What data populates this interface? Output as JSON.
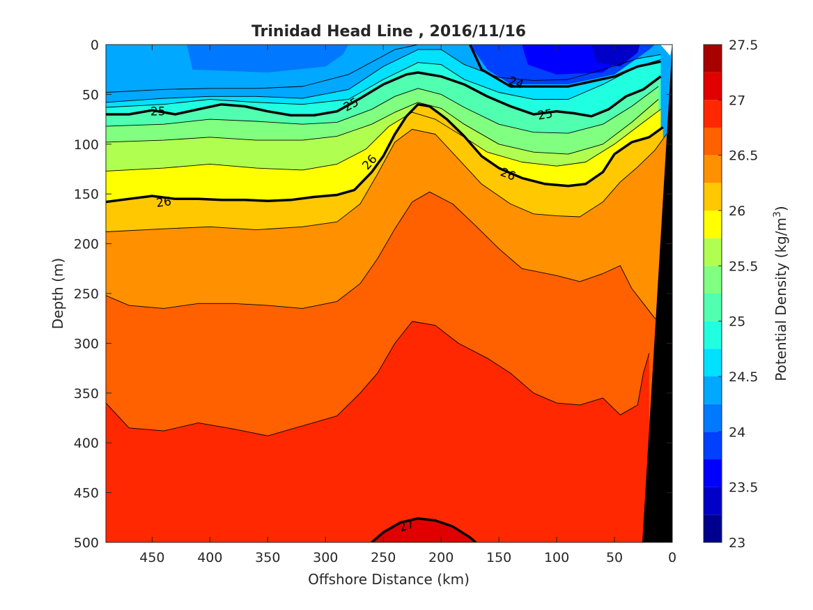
{
  "chart_data": {
    "type": "contour",
    "title": "Trinidad Head Line , 2016/11/16",
    "xlabel": "Offshore Distance (km)",
    "ylabel": "Depth (m)",
    "colorbar_label_main": "Potential Density (kg/m",
    "colorbar_label_sup": "3",
    "colorbar_label_tail": ")",
    "xlim": [
      490,
      0
    ],
    "ylim": [
      0,
      500
    ],
    "x_ticks": [
      450,
      400,
      350,
      300,
      250,
      200,
      150,
      100,
      50,
      0
    ],
    "y_ticks": [
      0,
      50,
      100,
      150,
      200,
      250,
      300,
      350,
      400,
      450,
      500
    ],
    "colorbar_levels": [
      23,
      23.25,
      23.5,
      23.75,
      24,
      24.25,
      24.5,
      24.75,
      25,
      25.25,
      25.5,
      25.75,
      26,
      26.25,
      26.5,
      26.75,
      27,
      27.25,
      27.5
    ],
    "colorbar_ticks": [
      23,
      23.5,
      24,
      24.5,
      25,
      25.5,
      26,
      26.5,
      27,
      27.5
    ],
    "colormap": [
      "#00008f",
      "#0000c8",
      "#0000ff",
      "#0040ff",
      "#0078ff",
      "#00a8ff",
      "#00e0ff",
      "#20ffe0",
      "#50ffb0",
      "#80ff80",
      "#b0ff50",
      "#ffff00",
      "#ffc800",
      "#ff9000",
      "#ff6000",
      "#ff2800",
      "#e00000",
      "#a80000"
    ],
    "isopycnals": [
      {
        "level": 24.25,
        "points": [
          [
            490,
            48
          ],
          [
            440,
            45
          ],
          [
            400,
            44
          ],
          [
            360,
            44
          ],
          [
            320,
            42
          ],
          [
            280,
            30
          ],
          [
            240,
            5
          ],
          [
            220,
            0
          ]
        ]
      },
      {
        "level": 24.5,
        "points": [
          [
            490,
            58
          ],
          [
            440,
            54
          ],
          [
            400,
            52
          ],
          [
            360,
            52
          ],
          [
            320,
            54
          ],
          [
            280,
            45
          ],
          [
            250,
            22
          ],
          [
            220,
            5
          ],
          [
            200,
            5
          ],
          [
            180,
            20
          ],
          [
            150,
            33
          ],
          [
            120,
            36
          ],
          [
            90,
            35
          ],
          [
            60,
            25
          ],
          [
            30,
            14
          ],
          [
            10,
            10
          ]
        ]
      },
      {
        "level": 24.75,
        "points": [
          [
            490,
            63
          ],
          [
            440,
            60
          ],
          [
            400,
            55
          ],
          [
            360,
            58
          ],
          [
            320,
            60
          ],
          [
            280,
            55
          ],
          [
            250,
            35
          ],
          [
            220,
            18
          ],
          [
            200,
            20
          ],
          [
            180,
            35
          ],
          [
            150,
            48
          ],
          [
            120,
            55
          ],
          [
            90,
            55
          ],
          [
            60,
            40
          ],
          [
            30,
            22
          ],
          [
            10,
            15
          ]
        ]
      },
      {
        "level": 25,
        "label": "25",
        "points": [
          [
            490,
            70
          ],
          [
            470,
            70
          ],
          [
            450,
            66
          ],
          [
            430,
            70
          ],
          [
            410,
            65
          ],
          [
            390,
            60
          ],
          [
            370,
            62
          ],
          [
            350,
            67
          ],
          [
            330,
            71
          ],
          [
            310,
            71
          ],
          [
            290,
            67
          ],
          [
            270,
            54
          ],
          [
            250,
            40
          ],
          [
            230,
            30
          ],
          [
            220,
            28
          ],
          [
            200,
            32
          ],
          [
            180,
            40
          ],
          [
            160,
            52
          ],
          [
            140,
            62
          ],
          [
            120,
            70
          ],
          [
            100,
            67
          ],
          [
            85,
            69
          ],
          [
            70,
            72
          ],
          [
            55,
            65
          ],
          [
            40,
            52
          ],
          [
            25,
            45
          ],
          [
            10,
            32
          ]
        ]
      },
      {
        "level": 25.25,
        "points": [
          [
            490,
            82
          ],
          [
            440,
            80
          ],
          [
            400,
            75
          ],
          [
            360,
            77
          ],
          [
            320,
            80
          ],
          [
            290,
            78
          ],
          [
            260,
            65
          ],
          [
            240,
            52
          ],
          [
            220,
            44
          ],
          [
            200,
            50
          ],
          [
            180,
            63
          ],
          [
            150,
            80
          ],
          [
            120,
            88
          ],
          [
            90,
            89
          ],
          [
            60,
            80
          ],
          [
            35,
            62
          ],
          [
            12,
            42
          ]
        ]
      },
      {
        "level": 25.5,
        "points": [
          [
            490,
            98
          ],
          [
            440,
            96
          ],
          [
            400,
            93
          ],
          [
            360,
            96
          ],
          [
            320,
            96
          ],
          [
            290,
            92
          ],
          [
            260,
            80
          ],
          [
            240,
            68
          ],
          [
            220,
            58
          ],
          [
            200,
            64
          ],
          [
            180,
            80
          ],
          [
            150,
            100
          ],
          [
            120,
            108
          ],
          [
            90,
            110
          ],
          [
            60,
            100
          ],
          [
            35,
            78
          ],
          [
            12,
            55
          ]
        ]
      },
      {
        "level": 25.75,
        "points": [
          [
            490,
            127
          ],
          [
            440,
            124
          ],
          [
            400,
            120
          ],
          [
            360,
            124
          ],
          [
            320,
            126
          ],
          [
            290,
            120
          ],
          [
            265,
            105
          ],
          [
            245,
            82
          ],
          [
            225,
            68
          ],
          [
            205,
            75
          ],
          [
            180,
            93
          ],
          [
            160,
            108
          ],
          [
            130,
            118
          ],
          [
            100,
            122
          ],
          [
            75,
            118
          ],
          [
            50,
            100
          ],
          [
            25,
            78
          ],
          [
            10,
            65
          ]
        ]
      },
      {
        "level": 26,
        "label": "26",
        "points": [
          [
            490,
            158
          ],
          [
            470,
            155
          ],
          [
            450,
            152
          ],
          [
            430,
            155
          ],
          [
            410,
            155
          ],
          [
            390,
            156
          ],
          [
            370,
            156
          ],
          [
            350,
            157
          ],
          [
            330,
            156
          ],
          [
            310,
            153
          ],
          [
            290,
            151
          ],
          [
            275,
            146
          ],
          [
            260,
            128
          ],
          [
            250,
            112
          ],
          [
            240,
            90
          ],
          [
            230,
            72
          ],
          [
            220,
            60
          ],
          [
            210,
            62
          ],
          [
            195,
            75
          ],
          [
            180,
            92
          ],
          [
            165,
            112
          ],
          [
            150,
            124
          ],
          [
            130,
            134
          ],
          [
            110,
            140
          ],
          [
            90,
            142
          ],
          [
            75,
            140
          ],
          [
            60,
            128
          ],
          [
            50,
            110
          ],
          [
            35,
            98
          ],
          [
            20,
            93
          ],
          [
            8,
            83
          ]
        ]
      },
      {
        "level": 26.25,
        "points": [
          [
            490,
            188
          ],
          [
            440,
            185
          ],
          [
            400,
            183
          ],
          [
            360,
            186
          ],
          [
            320,
            183
          ],
          [
            290,
            178
          ],
          [
            270,
            160
          ],
          [
            255,
            130
          ],
          [
            240,
            98
          ],
          [
            225,
            85
          ],
          [
            205,
            90
          ],
          [
            185,
            115
          ],
          [
            165,
            140
          ],
          [
            140,
            160
          ],
          [
            120,
            170
          ],
          [
            100,
            172
          ],
          [
            80,
            173
          ],
          [
            60,
            158
          ],
          [
            45,
            138
          ],
          [
            30,
            123
          ],
          [
            15,
            106
          ],
          [
            5,
            90
          ]
        ]
      },
      {
        "level": 26.5,
        "points": [
          [
            490,
            252
          ],
          [
            470,
            262
          ],
          [
            440,
            265
          ],
          [
            410,
            260
          ],
          [
            380,
            260
          ],
          [
            350,
            262
          ],
          [
            320,
            265
          ],
          [
            290,
            258
          ],
          [
            270,
            240
          ],
          [
            255,
            215
          ],
          [
            240,
            185
          ],
          [
            225,
            158
          ],
          [
            210,
            148
          ],
          [
            190,
            160
          ],
          [
            170,
            182
          ],
          [
            150,
            205
          ],
          [
            130,
            225
          ],
          [
            100,
            232
          ],
          [
            80,
            238
          ],
          [
            60,
            230
          ],
          [
            45,
            222
          ],
          [
            35,
            245
          ],
          [
            25,
            260
          ],
          [
            15,
            275
          ],
          [
            5,
            280
          ]
        ]
      },
      {
        "level": 26.75,
        "points": [
          [
            490,
            360
          ],
          [
            470,
            385
          ],
          [
            440,
            388
          ],
          [
            410,
            380
          ],
          [
            380,
            386
          ],
          [
            350,
            393
          ],
          [
            320,
            383
          ],
          [
            290,
            373
          ],
          [
            270,
            350
          ],
          [
            255,
            330
          ],
          [
            240,
            300
          ],
          [
            225,
            278
          ],
          [
            205,
            282
          ],
          [
            185,
            300
          ],
          [
            160,
            315
          ],
          [
            140,
            330
          ],
          [
            120,
            350
          ],
          [
            100,
            360
          ],
          [
            80,
            362
          ],
          [
            60,
            355
          ],
          [
            45,
            372
          ],
          [
            30,
            362
          ],
          [
            25,
            330
          ],
          [
            20,
            310
          ]
        ]
      },
      {
        "level": 27,
        "label": "27",
        "points": [
          [
            260,
            500
          ],
          [
            250,
            490
          ],
          [
            235,
            480
          ],
          [
            220,
            476
          ],
          [
            205,
            478
          ],
          [
            190,
            484
          ],
          [
            175,
            495
          ],
          [
            170,
            500
          ]
        ]
      }
    ],
    "contour_labels": [
      {
        "text": "25",
        "x": 445,
        "depth": 67,
        "angle": 0
      },
      {
        "text": "25",
        "x": 278,
        "depth": 60,
        "angle": -28
      },
      {
        "text": "24",
        "x": 135,
        "depth": 38,
        "angle": 18
      },
      {
        "text": "25",
        "x": 110,
        "depth": 70,
        "angle": -10
      },
      {
        "text": "26",
        "x": 440,
        "depth": 158,
        "angle": -8
      },
      {
        "text": "26",
        "x": 262,
        "depth": 118,
        "angle": -48
      },
      {
        "text": "26",
        "x": 142,
        "depth": 130,
        "angle": 22
      },
      {
        "text": "27",
        "x": 230,
        "depth": 483,
        "angle": -20
      }
    ]
  }
}
